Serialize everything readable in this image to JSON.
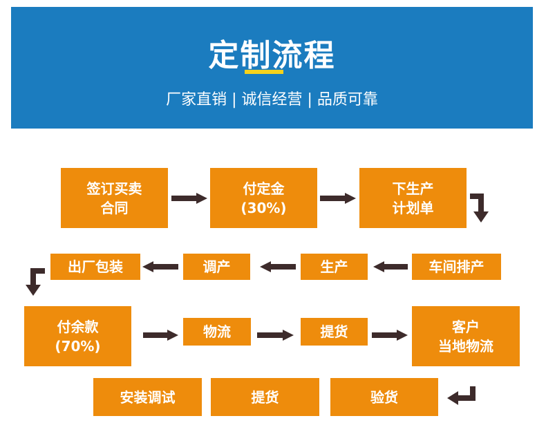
{
  "header": {
    "title": "定制流程",
    "subtitle": "厂家直销 | 诚信经营 | 品质可靠"
  },
  "colors": {
    "header_bg": "#1b7cbf",
    "accent": "#f6d21c",
    "box": "#ee8c0c",
    "arrow": "#3d2b2b"
  },
  "steps": [
    "签订买卖\n合同",
    "付定金\n(30%)",
    "下生产\n计划单",
    "车间排产",
    "生产",
    "调产",
    "出厂包装",
    "付余款\n(70%)",
    "物流",
    "提货",
    "客户\n当地物流",
    "验货",
    "提货",
    "安装调试"
  ]
}
